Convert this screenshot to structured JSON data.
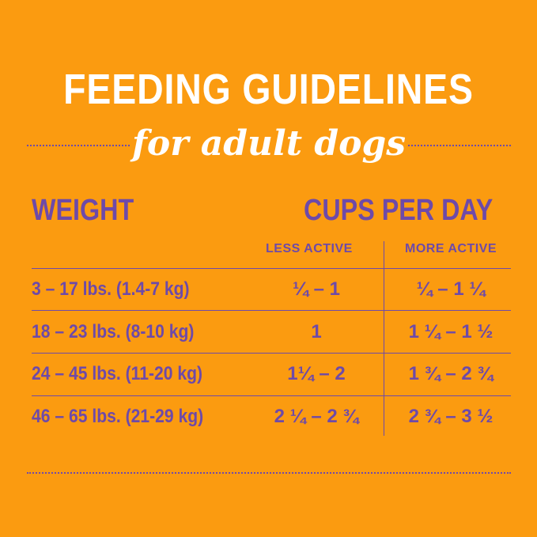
{
  "title": "FEEDING GUIDELINES",
  "subtitle": "for adult dogs",
  "table": {
    "weight_header": "WEIGHT",
    "cups_header": "CUPS PER DAY",
    "less_active_header": "LESS ACTIVE",
    "more_active_header": "MORE ACTIVE",
    "rows": [
      {
        "weight": "3 – 17 lbs. (1.4-7 kg)",
        "less": "¼ – 1",
        "more": "¼ – 1 ¼"
      },
      {
        "weight": "18 – 23 lbs. (8-10 kg)",
        "less": "1",
        "more": "1 ¼ – 1 ½"
      },
      {
        "weight": "24 – 45 lbs. (11-20 kg)",
        "less": "1¼ – 2",
        "more": "1 ¾ – 2 ¾"
      },
      {
        "weight": "46 – 65 lbs. (21-29 kg)",
        "less": "2 ¼ – 2 ¾",
        "more": "2 ¾ – 3 ½"
      }
    ]
  },
  "colors": {
    "background": "#FB9B10",
    "purple": "#6E4AA8",
    "white": "#FFFFFF"
  }
}
